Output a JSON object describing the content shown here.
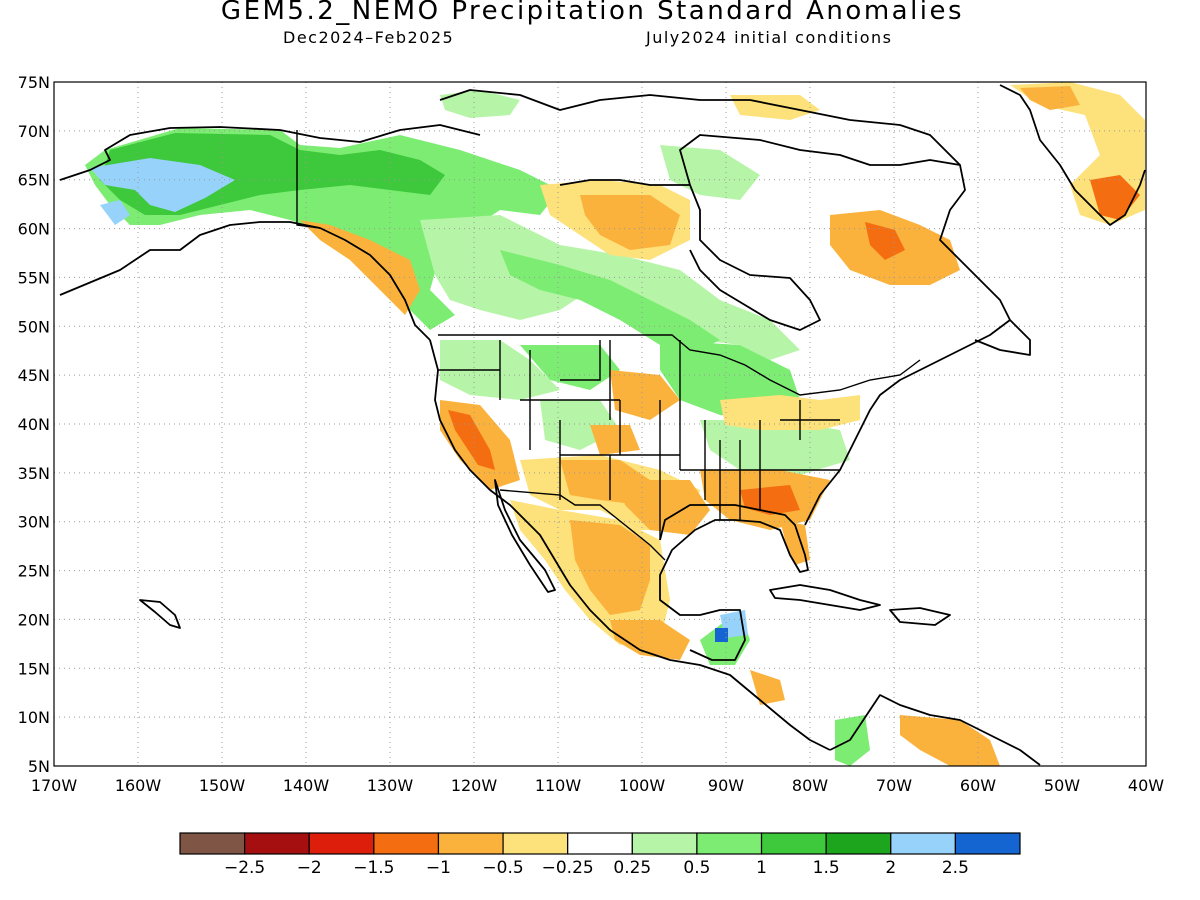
{
  "header": {
    "title": "GEM5.2_NEMO Precipitation Standard Anomalies",
    "period": "Dec2024–Feb2025",
    "initial_conditions": "July2024 initial conditions"
  },
  "axes": {
    "lat_labels": [
      "75N",
      "70N",
      "65N",
      "60N",
      "55N",
      "50N",
      "45N",
      "40N",
      "35N",
      "30N",
      "25N",
      "20N",
      "15N",
      "10N",
      "5N"
    ],
    "lon_labels": [
      "170W",
      "160W",
      "150W",
      "140W",
      "130W",
      "120W",
      "110W",
      "100W",
      "90W",
      "80W",
      "70W",
      "60W",
      "50W",
      "40W"
    ],
    "lat_range": [
      5,
      75
    ],
    "lon_range": [
      -170,
      -40
    ]
  },
  "colorbar": {
    "colors": [
      "#7f5546",
      "#a50f0f",
      "#dc1e0a",
      "#f46d11",
      "#fab23c",
      "#fde17a",
      "#ffffff",
      "#b6f5a8",
      "#7ced72",
      "#3ec83c",
      "#1ea51e",
      "#96d2fa",
      "#1464d2"
    ],
    "labels": [
      "−2.5",
      "−2",
      "−1.5",
      "−1",
      "−0.5",
      "−0.25",
      "0.25",
      "0.5",
      "1",
      "1.5",
      "2",
      "2.5"
    ]
  },
  "colors": {
    "coastline": "#000000",
    "gridline": "#999999"
  }
}
